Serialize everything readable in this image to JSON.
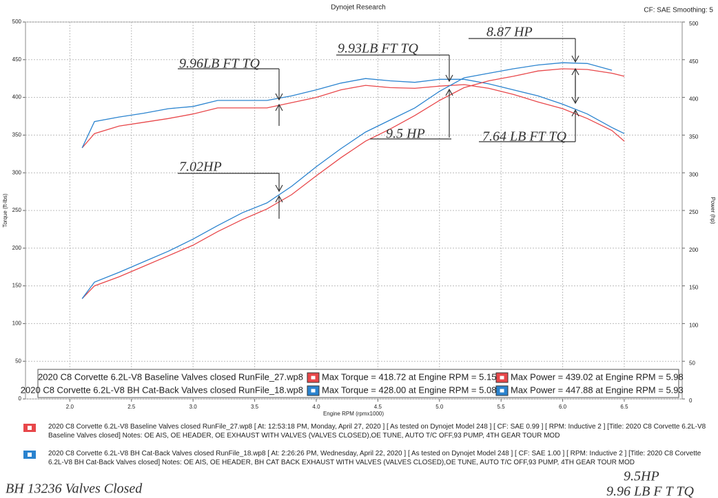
{
  "chart_data": {
    "type": "line",
    "header_title": "Dynojet Research",
    "header_right": "CF: SAE Smoothing: 5",
    "ylabel": "Torque (ft-lbs)",
    "y2label": "Power (hp)",
    "xlabel": "Engine RPM (rpmx1000)",
    "x": [
      2.1,
      2.2,
      2.4,
      2.6,
      2.8,
      3.0,
      3.2,
      3.4,
      3.6,
      3.8,
      4.0,
      4.2,
      4.4,
      4.6,
      4.8,
      5.0,
      5.2,
      5.4,
      5.6,
      5.8,
      6.0,
      6.2,
      6.4,
      6.5
    ],
    "series": [
      {
        "color": "#e8474a",
        "axis": "y",
        "values": [
          333,
          352,
          362,
          367,
          372,
          378,
          386,
          386,
          386,
          393,
          400,
          410,
          416,
          413,
          412,
          415,
          417,
          412,
          404,
          394,
          385,
          372,
          356,
          342
        ]
      },
      {
        "color": "#2a83cf",
        "axis": "y",
        "values": [
          333,
          368,
          374,
          379,
          385,
          388,
          396,
          396,
          396,
          402,
          410,
          419,
          425,
          422,
          420,
          424,
          424,
          418,
          410,
          402,
          391,
          378,
          360,
          352
        ]
      },
      {
        "color": "#e8474a",
        "axis": "y2",
        "values": [
          133,
          150,
          162,
          176,
          190,
          204,
          222,
          238,
          252,
          271,
          296,
          320,
          342,
          358,
          376,
          396,
          413,
          422,
          428,
          435,
          438,
          437,
          432,
          428
        ]
      },
      {
        "color": "#2a83cf",
        "axis": "y2",
        "values": [
          133,
          155,
          168,
          182,
          196,
          212,
          230,
          247,
          260,
          282,
          308,
          332,
          354,
          370,
          386,
          408,
          426,
          432,
          438,
          443,
          446,
          445,
          436,
          null
        ]
      }
    ],
    "xlim": [
      1.64,
      6.97
    ],
    "xticks": [
      {
        "value": 2,
        "label": "2.0"
      },
      2.5,
      {
        "value": 3,
        "label": "3.0"
      },
      3.5,
      {
        "value": 4,
        "label": "4.0"
      },
      4.5,
      {
        "value": 5,
        "label": "5.0"
      },
      5.5,
      {
        "value": 6,
        "label": "6.0"
      },
      6.5
    ],
    "ylim": [
      0,
      500
    ],
    "yticks": [
      0,
      50,
      100,
      150,
      200,
      250,
      300,
      350,
      400,
      450,
      500
    ],
    "y2lim": [
      0,
      500
    ],
    "y2ticks": [
      0,
      50,
      100,
      150,
      200,
      250,
      300,
      350,
      400,
      450,
      500
    ],
    "grid": true,
    "legend": [
      {
        "name": "2020 C8 Corvette 6.2L-V8 Baseline Valves closed RunFile_27.wp8",
        "color": "#e8474a",
        "max_torque": "Max Torque = 418.72 at Engine RPM = 5.15",
        "max_power": "Max Power = 439.02 at Engine RPM = 5.98"
      },
      {
        "name": "2020 C8 Corvette 6.2L-V8 BH Cat-Back Valves closed RunFile_18.wp8",
        "color": "#2a83cf",
        "max_torque": "Max Torque = 428.00 at Engine RPM = 5.08",
        "max_power": "Max Power = 447.88 at Engine RPM = 5.93"
      }
    ],
    "annotations": [
      "9.96LB FT TQ",
      "9.93LB FT TQ",
      "8.87 HP",
      "9.5 HP",
      "7.64 LB FT TQ",
      "7.02HP",
      "BH 13236 Valves Closed",
      "9.5HP",
      "9.96 LB F T TQ"
    ],
    "notes": [
      "2020 C8 Corvette 6.2L-V8 Baseline Valves closed RunFile_27.wp8 [ At: 12:53:18 PM, Monday, April 27, 2020 ] [ As tested on Dynojet Model 248 ] [ CF: SAE 0.99 ] [ RPM: Inductive 2 ] [Title: 2020 C8 Corvette 6.2L-V8 Baseline Valves closed]  Notes: OE AIS, OE HEADER, OE EXHAUST WITH VALVES (VALVES CLOSED),OE TUNE, AUTO T/C OFF,93 PUMP, 4TH GEAR TOUR MOD",
      "2020 C8 Corvette 6.2L-V8 BH Cat-Back Valves closed RunFile_18.wp8 [ At: 2:26:26 PM, Wednesday, April 22, 2020 ] [ As tested on Dynojet Model 248 ] [ CF: SAE 1.00 ] [ RPM: Inductive 2 ] [Title: 2020 C8 Corvette 6.2L-V8 BH Cat-Back Valves closed]  Notes: OE AIS, OE HEADER, BH CAT BACK EXHAUST WITH VALVES (VALVES CLOSED),OE TUNE, AUTO T/C OFF,93 PUMP, 4TH GEAR TOUR MOD"
    ]
  }
}
